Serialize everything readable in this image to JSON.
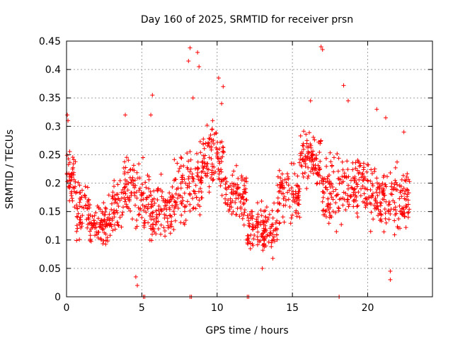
{
  "chart_data": {
    "type": "scatter",
    "title": "Day 160 of 2025, SRMTID for receiver prsn",
    "xlabel": "GPS time / hours",
    "ylabel": "SRMTID / TECUs",
    "xlim": [
      0,
      24.3
    ],
    "ylim": [
      0,
      0.45
    ],
    "x_ticks": [
      "0",
      "5",
      "10",
      "15",
      "20"
    ],
    "x_tick_values": [
      0,
      5,
      10,
      15,
      20
    ],
    "y_ticks": [
      "0",
      "0.05",
      "0.1",
      "0.15",
      "0.2",
      "0.25",
      "0.3",
      "0.35",
      "0.4",
      "0.45"
    ],
    "y_tick_values": [
      0,
      0.05,
      0.1,
      0.15,
      0.2,
      0.25,
      0.3,
      0.35,
      0.4,
      0.45
    ],
    "grid": true,
    "marker": "+",
    "color": "#ff0000",
    "baseline_points": [
      5.1,
      5.2,
      8.2,
      8.3,
      12.0,
      12.1,
      18.1
    ],
    "notable_points": [
      {
        "x": 0.05,
        "y": 0.32
      },
      {
        "x": 0.1,
        "y": 0.31
      },
      {
        "x": 4.6,
        "y": 0.035
      },
      {
        "x": 4.7,
        "y": 0.02
      },
      {
        "x": 5.7,
        "y": 0.355
      },
      {
        "x": 5.6,
        "y": 0.32
      },
      {
        "x": 8.1,
        "y": 0.415
      },
      {
        "x": 8.2,
        "y": 0.438
      },
      {
        "x": 8.7,
        "y": 0.43
      },
      {
        "x": 8.8,
        "y": 0.405
      },
      {
        "x": 8.4,
        "y": 0.35
      },
      {
        "x": 10.1,
        "y": 0.385
      },
      {
        "x": 10.4,
        "y": 0.37
      },
      {
        "x": 10.3,
        "y": 0.34
      },
      {
        "x": 9.7,
        "y": 0.31
      },
      {
        "x": 16.9,
        "y": 0.44
      },
      {
        "x": 17.0,
        "y": 0.435
      },
      {
        "x": 16.2,
        "y": 0.345
      },
      {
        "x": 18.4,
        "y": 0.372
      },
      {
        "x": 18.7,
        "y": 0.345
      },
      {
        "x": 20.6,
        "y": 0.33
      },
      {
        "x": 21.2,
        "y": 0.315
      },
      {
        "x": 21.5,
        "y": 0.045
      },
      {
        "x": 21.5,
        "y": 0.03
      },
      {
        "x": 22.4,
        "y": 0.29
      },
      {
        "x": 13.0,
        "y": 0.05
      },
      {
        "x": 3.9,
        "y": 0.32
      }
    ],
    "segments": [
      {
        "x0": 0.0,
        "x1": 0.6,
        "mean": 0.2,
        "spread": 0.05,
        "count": 45
      },
      {
        "x0": 0.6,
        "x1": 1.5,
        "mean": 0.15,
        "spread": 0.04,
        "count": 55
      },
      {
        "x0": 1.5,
        "x1": 3.0,
        "mean": 0.13,
        "spread": 0.035,
        "count": 95
      },
      {
        "x0": 3.0,
        "x1": 3.8,
        "mean": 0.16,
        "spread": 0.04,
        "count": 45
      },
      {
        "x0": 3.8,
        "x1": 4.6,
        "mean": 0.19,
        "spread": 0.045,
        "count": 55
      },
      {
        "x0": 4.6,
        "x1": 5.5,
        "mean": 0.17,
        "spread": 0.05,
        "count": 50
      },
      {
        "x0": 5.5,
        "x1": 7.0,
        "mean": 0.15,
        "spread": 0.045,
        "count": 95
      },
      {
        "x0": 7.0,
        "x1": 8.0,
        "mean": 0.18,
        "spread": 0.05,
        "count": 60
      },
      {
        "x0": 8.0,
        "x1": 9.0,
        "mean": 0.21,
        "spread": 0.06,
        "count": 65
      },
      {
        "x0": 9.0,
        "x1": 10.5,
        "mean": 0.24,
        "spread": 0.05,
        "count": 95
      },
      {
        "x0": 10.5,
        "x1": 12.0,
        "mean": 0.18,
        "spread": 0.04,
        "count": 90
      },
      {
        "x0": 12.0,
        "x1": 14.0,
        "mean": 0.12,
        "spread": 0.035,
        "count": 130
      },
      {
        "x0": 14.0,
        "x1": 15.5,
        "mean": 0.18,
        "spread": 0.04,
        "count": 90
      },
      {
        "x0": 15.5,
        "x1": 17.0,
        "mean": 0.24,
        "spread": 0.04,
        "count": 100
      },
      {
        "x0": 17.0,
        "x1": 18.5,
        "mean": 0.19,
        "spread": 0.05,
        "count": 90
      },
      {
        "x0": 18.5,
        "x1": 20.0,
        "mean": 0.2,
        "spread": 0.045,
        "count": 90
      },
      {
        "x0": 20.0,
        "x1": 21.5,
        "mean": 0.17,
        "spread": 0.045,
        "count": 90
      },
      {
        "x0": 21.5,
        "x1": 22.8,
        "mean": 0.17,
        "spread": 0.045,
        "count": 80
      }
    ]
  }
}
